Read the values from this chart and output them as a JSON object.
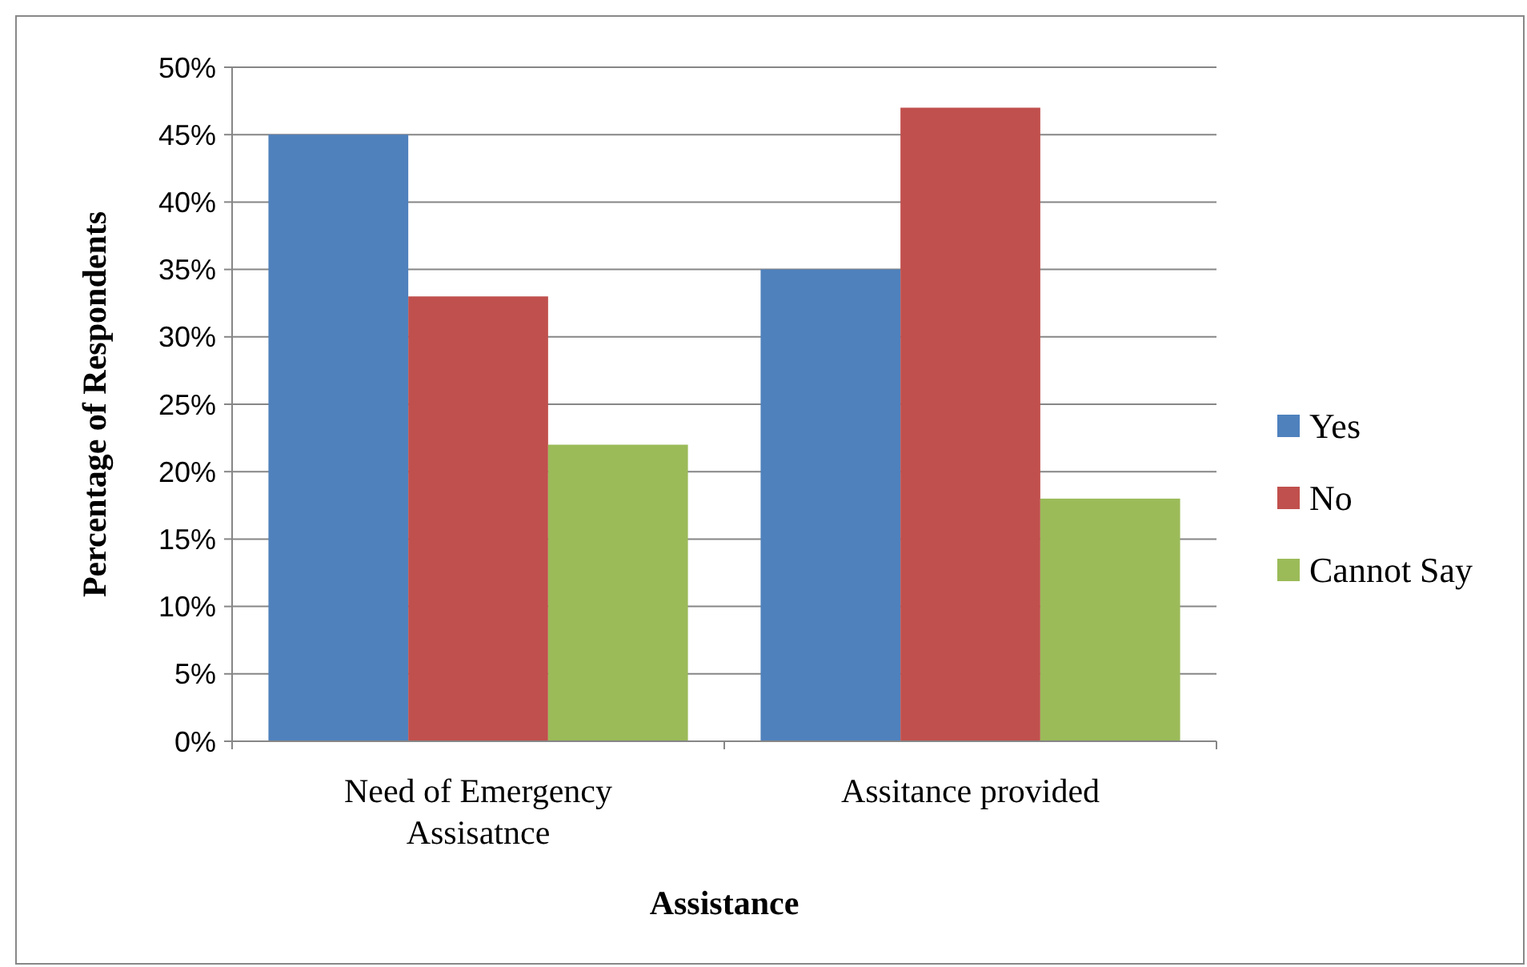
{
  "chart_data": {
    "type": "bar",
    "xlabel": "Assistance",
    "ylabel": "Percentage of Respondents",
    "categories": [
      "Need of Emergency Assisatnce",
      "Assitance provided"
    ],
    "series": [
      {
        "name": "Yes",
        "color": "#4f81bd",
        "values": [
          45,
          35
        ]
      },
      {
        "name": "No",
        "color": "#c0504d",
        "values": [
          33,
          47
        ]
      },
      {
        "name": "Cannot Say",
        "color": "#9bbb59",
        "values": [
          22,
          18
        ]
      }
    ],
    "ylim": [
      0,
      50
    ],
    "yticks": [
      {
        "value": 0,
        "label": "0%"
      },
      {
        "value": 5,
        "label": "5%"
      },
      {
        "value": 10,
        "label": "10%"
      },
      {
        "value": 15,
        "label": "15%"
      },
      {
        "value": 20,
        "label": "20%"
      },
      {
        "value": 25,
        "label": "25%"
      },
      {
        "value": 30,
        "label": "30%"
      },
      {
        "value": 35,
        "label": "35%"
      },
      {
        "value": 40,
        "label": "40%"
      },
      {
        "value": 45,
        "label": "45%"
      },
      {
        "value": 50,
        "label": "50%"
      }
    ],
    "grid": "y",
    "legend": "right"
  }
}
